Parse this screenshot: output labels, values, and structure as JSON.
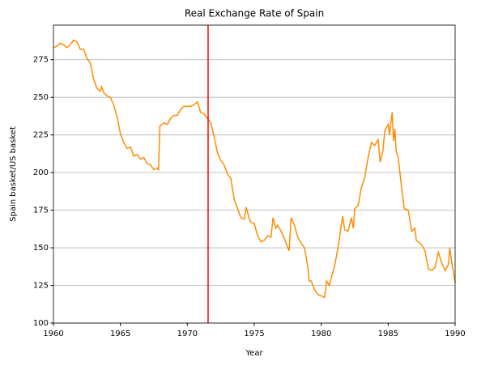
{
  "chart_data": {
    "type": "line",
    "title": "Real Exchange Rate of Spain",
    "x_label": "Year",
    "y_label": "Spain basket/US basket",
    "x": [
      1960.0,
      1960.25,
      1960.5,
      1960.75,
      1961.0,
      1961.25,
      1961.5,
      1961.75,
      1962.0,
      1962.25,
      1962.5,
      1962.75,
      1963.0,
      1963.25,
      1963.5,
      1963.6,
      1963.75,
      1964.0,
      1964.25,
      1964.5,
      1964.75,
      1965.0,
      1965.25,
      1965.5,
      1965.75,
      1966.0,
      1966.25,
      1966.5,
      1966.75,
      1967.0,
      1967.25,
      1967.5,
      1967.75,
      1967.85,
      1967.95,
      1968.25,
      1968.5,
      1968.75,
      1969.0,
      1969.25,
      1969.5,
      1969.75,
      1970.0,
      1970.25,
      1970.5,
      1970.75,
      1971.0,
      1971.25,
      1971.5,
      1971.75,
      1972.0,
      1972.25,
      1972.5,
      1972.75,
      1973.0,
      1973.25,
      1973.5,
      1973.75,
      1974.0,
      1974.25,
      1974.4,
      1974.6,
      1974.75,
      1975.0,
      1975.25,
      1975.5,
      1975.75,
      1976.0,
      1976.25,
      1976.4,
      1976.6,
      1976.75,
      1977.0,
      1977.25,
      1977.5,
      1977.6,
      1977.75,
      1978.0,
      1978.25,
      1978.5,
      1978.75,
      1979.0,
      1979.1,
      1979.25,
      1979.5,
      1979.75,
      1980.0,
      1980.25,
      1980.4,
      1980.6,
      1980.75,
      1981.0,
      1981.25,
      1981.5,
      1981.6,
      1981.75,
      1982.0,
      1982.25,
      1982.4,
      1982.5,
      1982.75,
      1983.0,
      1983.25,
      1983.5,
      1983.75,
      1984.0,
      1984.25,
      1984.4,
      1984.6,
      1984.75,
      1985.0,
      1985.1,
      1985.3,
      1985.4,
      1985.5,
      1985.6,
      1985.75,
      1986.0,
      1986.2,
      1986.5,
      1986.75,
      1987.0,
      1987.1,
      1987.5,
      1987.75,
      1988.0,
      1988.25,
      1988.5,
      1988.75,
      1989.0,
      1989.25,
      1989.5,
      1989.6,
      1989.75,
      1990.0
    ],
    "series": [
      {
        "name": "Spain",
        "color": "#ff8c00",
        "values": [
          283,
          284,
          286,
          285,
          283,
          285,
          288,
          287,
          282,
          282,
          276,
          273,
          262,
          256,
          254,
          257,
          253,
          251,
          250,
          245,
          237,
          226,
          220,
          216,
          217,
          211,
          212,
          209,
          210,
          206,
          205,
          202,
          203,
          202,
          231,
          233,
          232,
          236,
          238,
          238,
          242,
          244,
          244,
          244,
          245,
          247,
          240,
          239,
          236,
          233,
          224,
          213,
          208,
          205,
          199,
          196,
          182,
          176,
          170,
          169,
          177,
          170,
          167,
          166,
          158,
          154,
          155,
          158,
          157,
          170,
          163,
          165,
          161,
          156,
          150,
          148,
          170,
          165,
          157,
          153,
          150,
          137,
          128,
          128,
          122,
          119,
          118,
          117,
          128,
          125,
          130,
          138,
          150,
          165,
          171,
          162,
          161,
          170,
          163,
          176,
          178,
          190,
          197,
          210,
          220,
          218,
          222,
          207,
          214,
          228,
          232,
          225,
          240,
          221,
          229,
          214,
          210,
          190,
          176,
          175,
          161,
          163,
          155,
          152,
          148,
          136,
          135,
          137,
          147,
          140,
          135,
          139,
          150,
          140,
          127
        ]
      }
    ],
    "vlines": [
      {
        "x": 1971.55,
        "color": "#ff0000"
      }
    ],
    "xlim": [
      1960,
      1990
    ],
    "xticks": [
      1960,
      1965,
      1970,
      1975,
      1980,
      1985,
      1990
    ],
    "ylim": [
      100,
      298
    ],
    "yticks": [
      100,
      125,
      150,
      175,
      200,
      225,
      250,
      275
    ],
    "grid": "y"
  }
}
